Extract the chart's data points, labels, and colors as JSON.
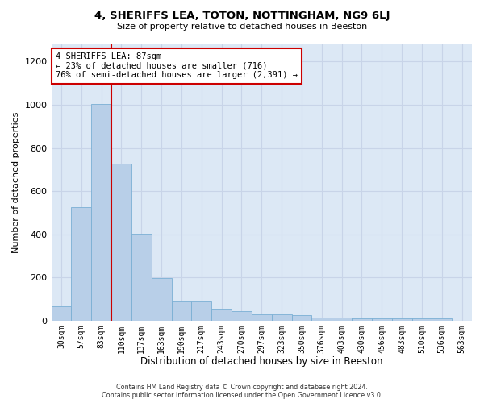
{
  "title": "4, SHERIFFS LEA, TOTON, NOTTINGHAM, NG9 6LJ",
  "subtitle": "Size of property relative to detached houses in Beeston",
  "xlabel": "Distribution of detached houses by size in Beeston",
  "ylabel": "Number of detached properties",
  "categories": [
    "30sqm",
    "57sqm",
    "83sqm",
    "110sqm",
    "137sqm",
    "163sqm",
    "190sqm",
    "217sqm",
    "243sqm",
    "270sqm",
    "297sqm",
    "323sqm",
    "350sqm",
    "376sqm",
    "403sqm",
    "430sqm",
    "456sqm",
    "483sqm",
    "510sqm",
    "536sqm",
    "563sqm"
  ],
  "values": [
    68,
    527,
    1002,
    727,
    403,
    198,
    90,
    90,
    55,
    42,
    30,
    28,
    25,
    15,
    15,
    10,
    10,
    10,
    10,
    10,
    0
  ],
  "bar_color": "#b8cfe8",
  "bar_edge_color": "#7bafd4",
  "highlight_bar_index": 2,
  "highlight_line_color": "#cc0000",
  "annotation_text": "4 SHERIFFS LEA: 87sqm\n← 23% of detached houses are smaller (716)\n76% of semi-detached houses are larger (2,391) →",
  "annotation_box_color": "#ffffff",
  "annotation_box_edge_color": "#cc0000",
  "footer_line1": "Contains HM Land Registry data © Crown copyright and database right 2024.",
  "footer_line2": "Contains public sector information licensed under the Open Government Licence v3.0.",
  "ylim": [
    0,
    1280
  ],
  "yticks": [
    0,
    200,
    400,
    600,
    800,
    1000,
    1200
  ],
  "grid_color": "#c8d4e8",
  "background_color": "#dce8f5"
}
